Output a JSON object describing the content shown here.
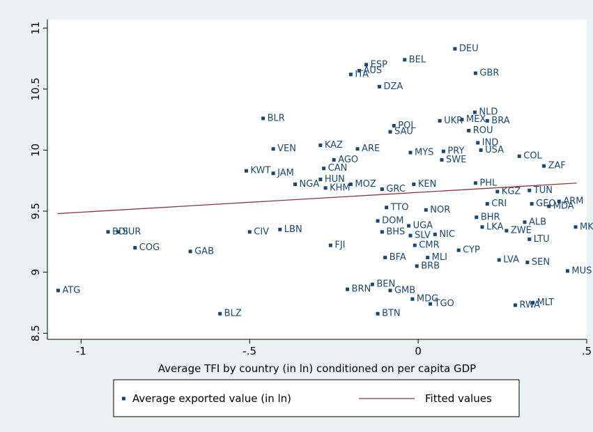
{
  "chart_data": {
    "type": "scatter",
    "xlabel": "Average TFI by country (in ln) conditioned on per capita GDP",
    "xlim": [
      -1.1,
      0.5
    ],
    "ylim": [
      8.45,
      11.07
    ],
    "xticks": [
      -1,
      {
        "value": -0.5,
        "label": "-.5"
      },
      0,
      {
        "value": 0.5,
        "label": ".5"
      }
    ],
    "yticks": [
      {
        "value": 8.5,
        "label": "8.5"
      },
      9,
      {
        "value": 9.5,
        "label": "9.5"
      },
      10,
      {
        "value": 10.5,
        "label": "10.5"
      },
      11
    ],
    "series": [
      {
        "name": "Average exported value (in ln)",
        "color": "#1a476f",
        "kind": "scatter",
        "labels": [
          "ATG",
          "BLZ",
          "GAB",
          "COG",
          "BDI",
          "SUR",
          "CIV",
          "LBN",
          "FJI",
          "KWT",
          "JAM",
          "NGA",
          "VEN",
          "BLR",
          "KAZ",
          "ARE",
          "AGO",
          "CAN",
          "HUN",
          "KHM",
          "MOZ",
          "GRC",
          "ITA",
          "AUS",
          "ESP",
          "BEL",
          "DZA",
          "DEU",
          "GBR",
          "POL",
          "SAU",
          "NLD",
          "UKR",
          "BRA",
          "MYS",
          "SWE",
          "PRY",
          "USA",
          "COL",
          "ZAF",
          "KEN",
          "TUN",
          "KGZ",
          "ARM",
          "MDA",
          "GEO",
          "MKD",
          "MUS",
          "SEN",
          "LVA",
          "LTU",
          "ZWE",
          "ALB",
          "LKA",
          "BHR",
          "TTO",
          "NOR",
          "DOM",
          "UGA",
          "BHS",
          "SLV",
          "NIC",
          "CYP",
          "CMR",
          "MLI",
          "BFA",
          "BRB",
          "BEN",
          "BRN",
          "GMB",
          "MDG",
          "TGO",
          "BTN",
          "RWA",
          "MLT",
          "PHL",
          "CRI",
          "IND",
          "MEX",
          "ROU"
        ],
        "x": [
          -1.068,
          -0.588,
          -0.676,
          -0.84,
          -0.92,
          -0.89,
          -0.5,
          -0.41,
          -0.26,
          -0.51,
          -0.43,
          -0.365,
          -0.43,
          -0.46,
          -0.29,
          -0.18,
          -0.25,
          -0.28,
          -0.29,
          -0.275,
          -0.2,
          -0.107,
          -0.2,
          -0.175,
          -0.154,
          -0.04,
          -0.115,
          0.109,
          0.17,
          -0.072,
          -0.083,
          0.168,
          0.064,
          0.205,
          -0.023,
          0.07,
          0.075,
          0.186,
          0.3,
          0.373,
          -0.013,
          0.33,
          0.235,
          0.418,
          0.388,
          0.337,
          0.467,
          0.443,
          0.324,
          0.24,
          0.33,
          0.262,
          0.316,
          0.19,
          0.173,
          -0.094,
          0.023,
          -0.12,
          -0.028,
          -0.107,
          -0.023,
          0.05,
          0.12,
          -0.01,
          0.028,
          -0.098,
          -0.004,
          -0.136,
          -0.21,
          -0.083,
          -0.017,
          0.036,
          -0.12,
          0.288,
          0.34,
          0.17,
          0.205,
          0.177,
          0.13,
          0.15
        ],
        "values": [
          8.85,
          8.66,
          9.17,
          9.2,
          9.33,
          9.33,
          9.33,
          9.35,
          9.22,
          9.83,
          9.81,
          9.72,
          10.01,
          10.26,
          10.04,
          10.01,
          9.92,
          9.85,
          9.76,
          9.69,
          9.72,
          9.68,
          10.62,
          10.65,
          10.7,
          10.74,
          10.52,
          10.83,
          10.63,
          10.2,
          10.15,
          10.31,
          10.24,
          10.24,
          9.98,
          9.92,
          9.99,
          10.0,
          9.95,
          9.87,
          9.72,
          9.67,
          9.66,
          9.58,
          9.54,
          9.56,
          9.37,
          9.01,
          9.08,
          9.1,
          9.27,
          9.34,
          9.41,
          9.37,
          9.45,
          9.53,
          9.51,
          9.42,
          9.38,
          9.33,
          9.3,
          9.31,
          9.18,
          9.22,
          9.12,
          9.12,
          9.05,
          8.9,
          8.86,
          8.85,
          8.78,
          8.74,
          8.66,
          8.73,
          8.75,
          9.73,
          9.56,
          10.06,
          10.25,
          10.16
        ]
      },
      {
        "name": "Fitted values",
        "color": "#90353b",
        "kind": "line",
        "x": [
          -1.07,
          0.47
        ],
        "values": [
          9.48,
          9.73
        ]
      }
    ]
  }
}
